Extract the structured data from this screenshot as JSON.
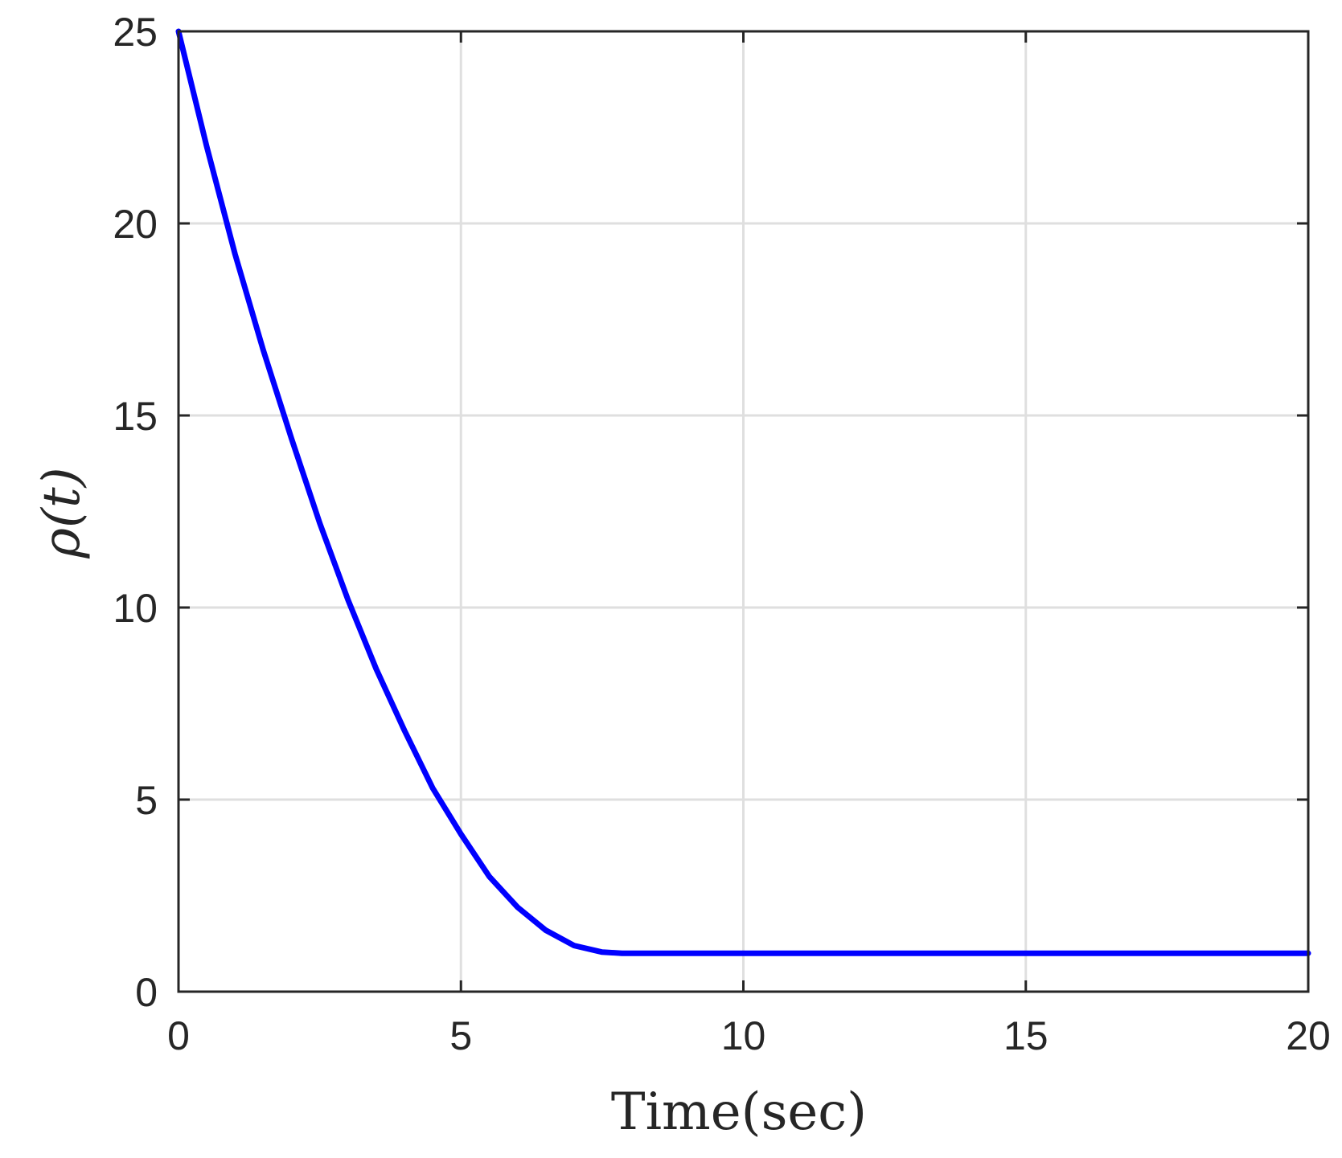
{
  "chart_data": {
    "type": "line",
    "xlabel": "Time(sec)",
    "ylabel": "ρ(t)",
    "xlim": [
      0,
      20
    ],
    "ylim": [
      0,
      25
    ],
    "xticks": [
      0,
      5,
      10,
      15,
      20
    ],
    "yticks": [
      0,
      5,
      10,
      15,
      20,
      25
    ],
    "grid": true,
    "series": [
      {
        "color": "#0000ff",
        "x": [
          0,
          0.5,
          1,
          1.5,
          2,
          2.5,
          3,
          3.5,
          4,
          4.5,
          5,
          5.5,
          6,
          6.5,
          7,
          7.5,
          7.85,
          8,
          10,
          12,
          14,
          16,
          18,
          20
        ],
        "y": [
          25,
          22.0,
          19.2,
          16.7,
          14.4,
          12.2,
          10.2,
          8.4,
          6.8,
          5.3,
          4.1,
          3.0,
          2.2,
          1.6,
          1.2,
          1.03,
          1.0,
          1.0,
          1.0,
          1.0,
          1.0,
          1.0,
          1.0,
          1.0
        ]
      }
    ]
  },
  "colors": {
    "axis": "#262626",
    "grid": "#dfdfdf",
    "line": "#0000ff"
  }
}
